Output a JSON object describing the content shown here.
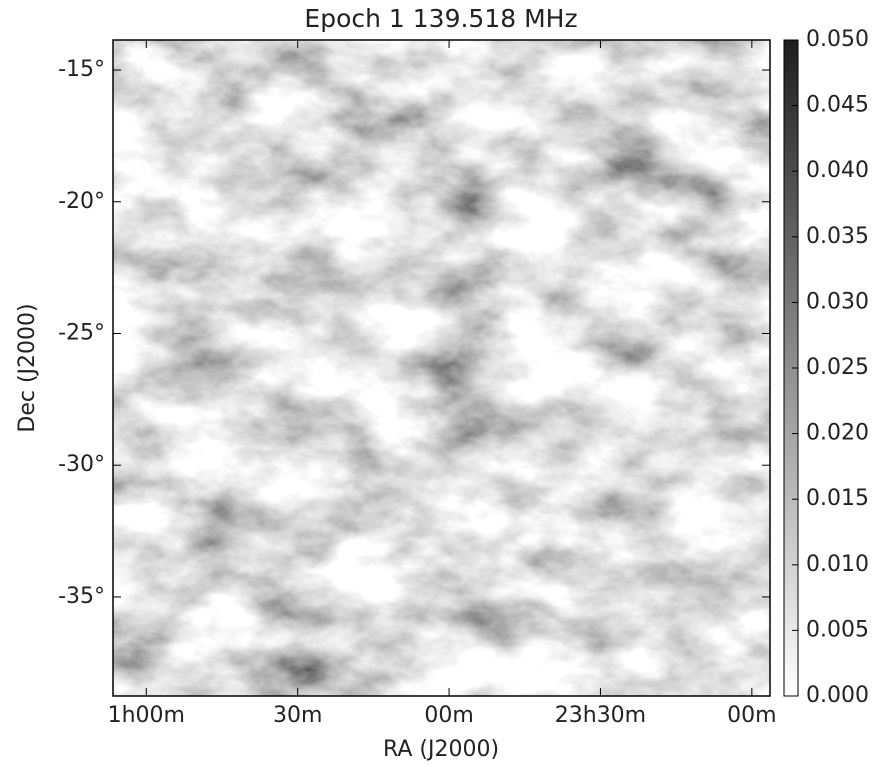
{
  "chart_data": {
    "type": "heatmap",
    "title": "Epoch 1 139.518 MHz",
    "x_label": "RA (J2000)",
    "y_label": "Dec (J2000)",
    "xlim": [
      25.11,
      22.94
    ],
    "xticks": [
      {
        "value": 25,
        "label": "1h00m"
      },
      {
        "value": 24.5,
        "label": "30m"
      },
      {
        "value": 24,
        "label": "00m"
      },
      {
        "value": 23.5,
        "label": "23h30m"
      },
      {
        "value": 23,
        "label": "00m"
      }
    ],
    "ylim": [
      -38.76,
      -13.86
    ],
    "yticks": [
      {
        "value": -15,
        "label": "-15°"
      },
      {
        "value": -20,
        "label": "-20°"
      },
      {
        "value": -25,
        "label": "-25°"
      },
      {
        "value": -30,
        "label": "-30°"
      },
      {
        "value": -35,
        "label": "-35°"
      }
    ],
    "colorbar": {
      "lim": [
        0,
        0.05
      ],
      "colors": [
        "#ffffff",
        "#1e1e1e"
      ],
      "ticks": [
        {
          "value": 0,
          "label": "0.000"
        },
        {
          "value": 0.005,
          "label": "0.005"
        },
        {
          "value": 0.01,
          "label": "0.010"
        },
        {
          "value": 0.015,
          "label": "0.015"
        },
        {
          "value": 0.02,
          "label": "0.020"
        },
        {
          "value": 0.025,
          "label": "0.025"
        },
        {
          "value": 0.03,
          "label": "0.030"
        },
        {
          "value": 0.035,
          "label": "0.035"
        },
        {
          "value": 0.04,
          "label": "0.040"
        },
        {
          "value": 0.045,
          "label": "0.045"
        },
        {
          "value": 0.05,
          "label": "0.050"
        }
      ]
    }
  }
}
